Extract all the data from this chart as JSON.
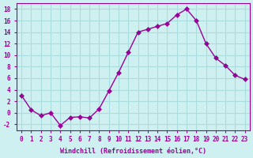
{
  "x": [
    0,
    1,
    2,
    3,
    4,
    5,
    6,
    7,
    8,
    9,
    10,
    11,
    12,
    13,
    14,
    15,
    16,
    17,
    18,
    19,
    20,
    21,
    22,
    23
  ],
  "y": [
    3,
    0.5,
    -0.5,
    0,
    -2.2,
    -0.8,
    -0.7,
    -0.9,
    0.7,
    3.8,
    7,
    10.5,
    14,
    14.5,
    15,
    15.5,
    17,
    18,
    16,
    12,
    9.5,
    8.2,
    6.5,
    5.8
  ],
  "line_color": "#990099",
  "marker": "D",
  "marker_size": 3,
  "bg_color": "#cff0f0",
  "grid_color": "#aadddd",
  "xlabel": "Windchill (Refroidissement éolien,°C)",
  "ylim": [
    -3,
    19
  ],
  "xlim": [
    -0.5,
    23.5
  ],
  "yticks": [
    -2,
    0,
    2,
    4,
    6,
    8,
    10,
    12,
    14,
    16,
    18
  ],
  "xticks": [
    0,
    1,
    2,
    3,
    4,
    5,
    6,
    7,
    8,
    9,
    10,
    11,
    12,
    13,
    14,
    15,
    16,
    17,
    18,
    19,
    20,
    21,
    22,
    23
  ],
  "tick_color": "#990099",
  "label_color": "#990099",
  "axis_color": "#990099",
  "fontname": "monospace"
}
